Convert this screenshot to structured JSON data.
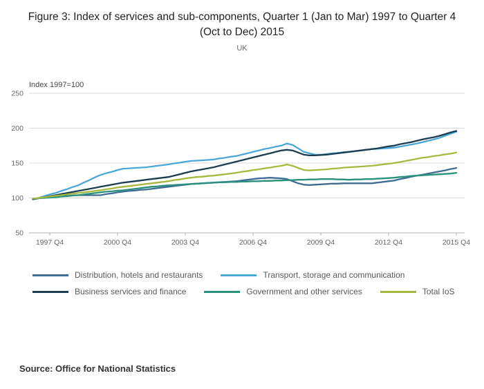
{
  "header": {
    "title": "Figure 3: Index of services and sub-components, Quarter 1 (Jan to Mar) 1997 to Quarter 4 (Oct to Dec) 2015",
    "subtitle": "UK"
  },
  "source": "Source: Office for National Statistics",
  "chart_data": {
    "type": "line",
    "title": "Figure 3: Index of services and sub-components, Quarter 1 (Jan to Mar) 1997 to Quarter 4 (Oct to Dec) 2015",
    "subtitle": "UK",
    "unit_label": "Index 1997=100",
    "grid": true,
    "legend_position": "bottom",
    "ylim": [
      50,
      250
    ],
    "y_ticks": [
      50,
      100,
      150,
      200,
      250
    ],
    "x_axis": {
      "start": "1997 Q1",
      "end": "2015 Q4",
      "frequency": "quarterly",
      "points": 76
    },
    "x_tick_labels": [
      "1997 Q4",
      "2000 Q4",
      "2003 Q4",
      "2006 Q4",
      "2009 Q4",
      "2012 Q4",
      "2015 Q4"
    ],
    "x_tick_indices": [
      3,
      15,
      27,
      39,
      51,
      63,
      75
    ],
    "series": [
      {
        "name": "Distribution, hotels and restaurants",
        "color": "#3f6c94",
        "values": [
          99,
          99.5,
          100.5,
          101.5,
          102,
          102.5,
          103,
          103.5,
          104,
          104,
          104,
          104,
          104,
          105.5,
          106.5,
          108,
          109,
          110,
          110.5,
          111.5,
          112,
          113,
          114,
          115,
          116,
          117,
          118,
          119,
          120,
          120.5,
          121,
          121.5,
          122,
          122.5,
          123,
          123.5,
          124,
          125,
          126,
          127,
          128,
          128.5,
          129,
          128.5,
          128,
          127,
          124,
          121,
          119,
          118.5,
          119,
          119.5,
          120,
          120.5,
          120.5,
          121,
          121,
          121,
          121,
          121,
          121,
          122,
          123,
          124,
          125,
          127,
          128.5,
          130.5,
          132,
          133.5,
          135,
          136.5,
          138,
          139.5,
          141.5,
          143
        ]
      },
      {
        "name": "Transport, storage and communication",
        "color": "#4ba6d8",
        "values": [
          98,
          100,
          102.5,
          105,
          107,
          110,
          112.5,
          115.5,
          118,
          122,
          125.5,
          129.5,
          133,
          135.5,
          137.5,
          140,
          142,
          142.5,
          143,
          143.5,
          144,
          145,
          146,
          147,
          148,
          149.5,
          150.5,
          152,
          153,
          153.5,
          154,
          154.5,
          155,
          156.5,
          157.5,
          159,
          160,
          162,
          164,
          166,
          168,
          170,
          171.5,
          173.5,
          175,
          178,
          176,
          171,
          166,
          164,
          162,
          162,
          163,
          164,
          164.5,
          165.5,
          166,
          167,
          168,
          169,
          170,
          170.5,
          171,
          171.5,
          172,
          173.5,
          175,
          176.5,
          178,
          180,
          182,
          184,
          186,
          189,
          192,
          195
        ]
      },
      {
        "name": "Business services and finance",
        "color": "#1c3c50",
        "values": [
          98,
          99.5,
          101,
          102.5,
          104,
          105.5,
          107,
          108.5,
          110,
          111.5,
          113,
          114.5,
          116,
          117.5,
          119,
          120.5,
          122,
          123,
          124,
          125,
          126,
          127,
          128,
          129,
          130,
          132,
          134,
          136,
          138,
          139.5,
          141,
          142.5,
          144,
          146,
          148,
          150,
          152,
          154,
          156,
          158,
          160,
          162,
          164,
          166,
          168,
          169,
          168,
          165,
          162,
          161,
          161,
          161.5,
          162,
          163,
          164,
          165,
          166,
          167,
          168,
          169,
          170,
          171,
          172.5,
          174,
          175,
          177,
          178.5,
          180,
          182,
          184,
          185.5,
          187,
          189,
          191.5,
          194,
          196
        ]
      },
      {
        "name": "Government and other services",
        "color": "#28917c",
        "values": [
          99,
          99.5,
          100,
          100.5,
          101,
          102,
          102.5,
          103.5,
          104,
          105,
          106,
          107,
          108,
          109,
          109.5,
          110.5,
          111,
          112,
          113,
          114,
          115,
          116,
          116.5,
          117.5,
          118,
          118.5,
          119,
          119.5,
          120,
          120.5,
          121,
          121.5,
          122,
          122.5,
          122.5,
          123,
          123,
          123.5,
          123.5,
          124,
          124,
          124.5,
          124.5,
          125,
          125,
          125.5,
          125.5,
          126,
          126,
          126.5,
          126.5,
          127,
          127,
          127,
          126.5,
          126.5,
          126,
          126.5,
          126.5,
          127,
          127,
          127.5,
          128,
          128.5,
          129,
          130,
          130.5,
          131.5,
          132,
          132.5,
          133,
          133.5,
          134,
          134.5,
          135,
          136
        ]
      },
      {
        "name": "Total IoS",
        "color": "#a6b93c",
        "values": [
          99,
          100,
          101,
          102,
          103,
          104,
          105,
          106,
          107,
          108,
          109,
          110,
          111,
          112.5,
          113.5,
          115,
          116,
          117,
          118,
          119,
          120,
          121,
          122,
          123,
          124,
          125.5,
          126.5,
          128,
          129,
          130,
          130.5,
          131.5,
          132,
          133,
          134,
          135,
          136,
          137.5,
          138.5,
          140,
          141,
          142.5,
          143.5,
          145,
          146,
          148,
          146,
          143,
          140,
          139.5,
          140,
          140.5,
          141,
          142,
          142.5,
          143.5,
          144,
          144.5,
          145,
          145.5,
          146,
          147,
          148,
          149,
          150,
          151.5,
          153,
          154.5,
          156,
          157.5,
          158.5,
          160,
          161,
          162.5,
          163.5,
          165
        ]
      }
    ],
    "colors": {
      "gridline": "#d9d9d9",
      "axis": "#b0b0b0",
      "tick_text": "#666666"
    }
  }
}
